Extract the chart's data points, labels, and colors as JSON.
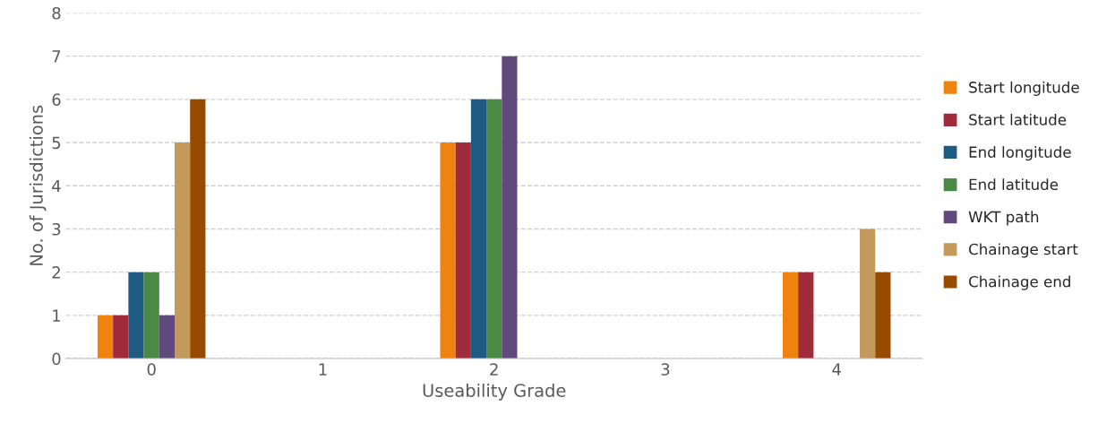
{
  "chart_data": {
    "type": "bar",
    "xlabel": "Useability Grade",
    "ylabel": "No. of Jurisdictions",
    "categories": [
      "0",
      "1",
      "2",
      "3",
      "4"
    ],
    "series": [
      {
        "name": "Start longitude",
        "color": "#f0820f",
        "values": [
          1,
          0,
          5,
          0,
          2
        ]
      },
      {
        "name": "Start latitude",
        "color": "#a02b3a",
        "values": [
          1,
          0,
          5,
          0,
          2
        ]
      },
      {
        "name": "End longitude",
        "color": "#1f5a82",
        "values": [
          2,
          0,
          6,
          0,
          0
        ]
      },
      {
        "name": "End latitude",
        "color": "#4a8a45",
        "values": [
          2,
          0,
          6,
          0,
          0
        ]
      },
      {
        "name": "WKT path",
        "color": "#604a7b",
        "values": [
          1,
          0,
          7,
          0,
          0
        ]
      },
      {
        "name": "Chainage start",
        "color": "#c49a5c",
        "values": [
          5,
          0,
          0,
          0,
          3
        ]
      },
      {
        "name": "Chainage end",
        "color": "#964b00",
        "values": [
          6,
          0,
          0,
          0,
          2
        ]
      }
    ],
    "ylim": [
      0,
      8
    ],
    "yticks": [
      0,
      1,
      2,
      3,
      4,
      5,
      6,
      7,
      8
    ],
    "grid": "y",
    "legend": "right"
  }
}
